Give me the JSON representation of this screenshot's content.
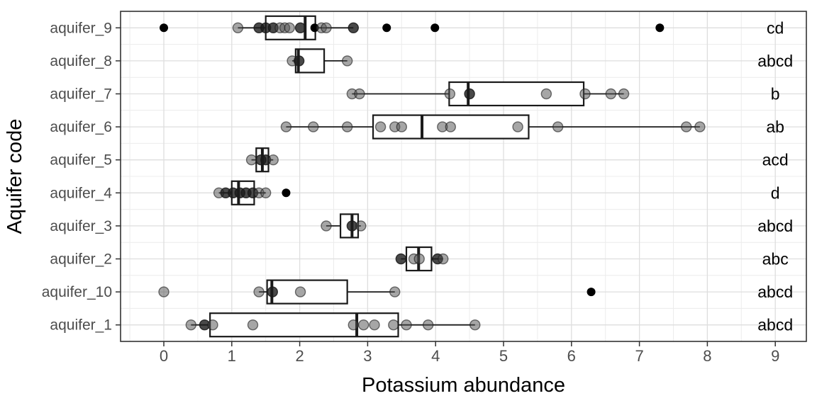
{
  "colors": {
    "background": "#ffffff",
    "panel_border": "#333333",
    "grid_major": "#dedede",
    "grid_minor": "#ececec",
    "box_stroke": "#1a1a1a",
    "point_gray": "#4d4d4d",
    "point_black": "#000000",
    "tick_text": "#4d4d4d",
    "title_text": "#000000"
  },
  "chart_data": {
    "type": "boxplot",
    "orientation": "horizontal",
    "title": "",
    "xlabel": "Potassium abundance",
    "ylabel": "Aquifer code",
    "x_ticks": [
      0,
      1,
      2,
      3,
      4,
      5,
      6,
      7,
      8,
      9
    ],
    "xlim": [
      -0.64,
      9.46
    ],
    "grid": "major+minor",
    "legend": "none",
    "letters_x": 9.0,
    "groups": [
      {
        "label": "aquifer_9",
        "letter": "cd",
        "box": {
          "lo": 1.09,
          "q1": 1.5,
          "med": 2.08,
          "q3": 2.23,
          "hi": 2.79
        },
        "points": [
          [
            0.0,
            "black"
          ],
          [
            1.09,
            "gray"
          ],
          [
            1.4,
            "dark"
          ],
          [
            1.5,
            "dark"
          ],
          [
            1.61,
            "dark"
          ],
          [
            1.71,
            "gray"
          ],
          [
            1.78,
            "gray"
          ],
          [
            1.85,
            "gray"
          ],
          [
            2.01,
            "dark"
          ],
          [
            2.22,
            "black"
          ],
          [
            2.32,
            "gray"
          ],
          [
            2.39,
            "gray"
          ],
          [
            2.79,
            "dark"
          ],
          [
            3.28,
            "black"
          ],
          [
            3.99,
            "black"
          ],
          [
            7.3,
            "black"
          ]
        ]
      },
      {
        "label": "aquifer_8",
        "letter": "abcd",
        "box": {
          "lo": 1.89,
          "q1": 1.94,
          "med": 1.98,
          "q3": 2.36,
          "hi": 2.7
        },
        "points": [
          [
            1.89,
            "gray"
          ],
          [
            1.99,
            "dark"
          ],
          [
            2.7,
            "gray"
          ]
        ]
      },
      {
        "label": "aquifer_7",
        "letter": "b",
        "box": {
          "lo": 2.77,
          "q1": 4.2,
          "med": 4.48,
          "q3": 6.18,
          "hi": 6.77
        },
        "points": [
          [
            2.77,
            "gray"
          ],
          [
            2.88,
            "gray"
          ],
          [
            4.21,
            "gray"
          ],
          [
            4.5,
            "dark"
          ],
          [
            5.63,
            "gray"
          ],
          [
            6.2,
            "gray"
          ],
          [
            6.58,
            "gray"
          ],
          [
            6.77,
            "gray"
          ]
        ]
      },
      {
        "label": "aquifer_6",
        "letter": "ab",
        "box": {
          "lo": 1.8,
          "q1": 3.08,
          "med": 3.8,
          "q3": 5.37,
          "hi": 7.89
        },
        "points": [
          [
            1.8,
            "gray"
          ],
          [
            2.2,
            "gray"
          ],
          [
            2.7,
            "gray"
          ],
          [
            3.19,
            "gray"
          ],
          [
            3.4,
            "gray"
          ],
          [
            3.5,
            "gray"
          ],
          [
            4.1,
            "gray"
          ],
          [
            4.22,
            "gray"
          ],
          [
            5.21,
            "gray"
          ],
          [
            5.8,
            "gray"
          ],
          [
            7.69,
            "gray"
          ],
          [
            7.89,
            "gray"
          ]
        ]
      },
      {
        "label": "aquifer_5",
        "letter": "acd",
        "box": {
          "lo": 1.29,
          "q1": 1.36,
          "med": 1.45,
          "q3": 1.54,
          "hi": 1.61
        },
        "points": [
          [
            1.29,
            "gray"
          ],
          [
            1.43,
            "dark"
          ],
          [
            1.5,
            "dark"
          ],
          [
            1.61,
            "gray"
          ]
        ]
      },
      {
        "label": "aquifer_4",
        "letter": "d",
        "box": {
          "lo": 0.81,
          "q1": 1.0,
          "med": 1.1,
          "q3": 1.33,
          "hi": 1.5
        },
        "points": [
          [
            0.81,
            "gray"
          ],
          [
            0.91,
            "dark"
          ],
          [
            1.02,
            "dark"
          ],
          [
            1.12,
            "dark"
          ],
          [
            1.21,
            "dark"
          ],
          [
            1.31,
            "dark"
          ],
          [
            1.4,
            "gray"
          ],
          [
            1.5,
            "gray"
          ],
          [
            1.8,
            "black"
          ]
        ]
      },
      {
        "label": "aquifer_3",
        "letter": "abcd",
        "box": {
          "lo": 2.39,
          "q1": 2.6,
          "med": 2.77,
          "q3": 2.86,
          "hi": 2.9
        },
        "points": [
          [
            2.39,
            "gray"
          ],
          [
            2.77,
            "dark"
          ],
          [
            2.9,
            "gray"
          ]
        ]
      },
      {
        "label": "aquifer_2",
        "letter": "abc",
        "box": {
          "lo": 3.49,
          "q1": 3.57,
          "med": 3.75,
          "q3": 3.94,
          "hi": 4.11
        },
        "points": [
          [
            3.49,
            "dark"
          ],
          [
            3.68,
            "gray"
          ],
          [
            3.76,
            "gray"
          ],
          [
            4.03,
            "dark"
          ],
          [
            4.11,
            "gray"
          ]
        ]
      },
      {
        "label": "aquifer_10",
        "letter": "abcd",
        "box": {
          "lo": 1.4,
          "q1": 1.52,
          "med": 1.59,
          "q3": 2.7,
          "hi": 3.4
        },
        "points": [
          [
            0.0,
            "gray"
          ],
          [
            1.4,
            "gray"
          ],
          [
            1.6,
            "dark"
          ],
          [
            2.01,
            "gray"
          ],
          [
            3.4,
            "gray"
          ],
          [
            6.29,
            "black"
          ]
        ]
      },
      {
        "label": "aquifer_1",
        "letter": "abcd",
        "box": {
          "lo": 0.4,
          "q1": 0.68,
          "med": 2.84,
          "q3": 3.45,
          "hi": 4.58
        },
        "points": [
          [
            0.4,
            "gray"
          ],
          [
            0.6,
            "dark"
          ],
          [
            0.72,
            "gray"
          ],
          [
            1.31,
            "gray"
          ],
          [
            2.79,
            "gray"
          ],
          [
            2.94,
            "gray"
          ],
          [
            3.1,
            "gray"
          ],
          [
            3.38,
            "gray"
          ],
          [
            3.57,
            "gray"
          ],
          [
            3.89,
            "gray"
          ],
          [
            4.58,
            "gray"
          ]
        ]
      }
    ]
  }
}
